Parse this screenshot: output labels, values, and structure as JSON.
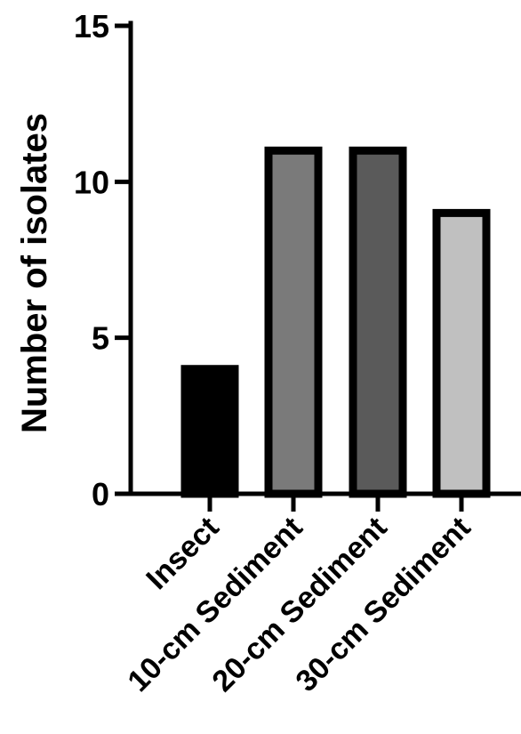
{
  "chart_data": {
    "type": "bar",
    "title": "",
    "xlabel": "",
    "ylabel": "Number of isolates",
    "ylim": [
      0,
      15
    ],
    "yticks": [
      0,
      5,
      10,
      15
    ],
    "categories": [
      "Insect",
      "10-cm Sediment",
      "20-cm Sediment",
      "30-cm Sediment"
    ],
    "values": [
      4,
      11,
      11,
      9
    ],
    "colors": [
      "#000000",
      "#7a7a7a",
      "#5a5a5a",
      "#c0c0c0"
    ],
    "grid": false,
    "legend": "none"
  }
}
